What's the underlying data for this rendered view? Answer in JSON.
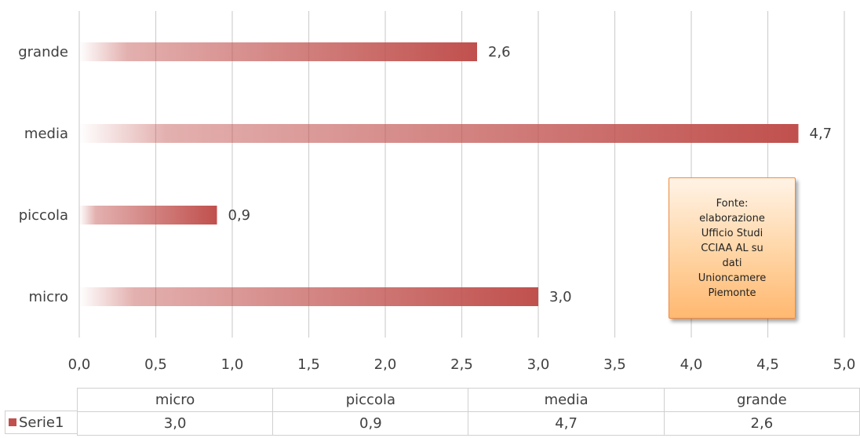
{
  "chart_data": {
    "type": "bar",
    "orientation": "horizontal",
    "categories": [
      "micro",
      "piccola",
      "media",
      "grande"
    ],
    "series": [
      {
        "name": "Serie1",
        "values": [
          3.0,
          0.9,
          4.7,
          2.6
        ],
        "labels": [
          "3,0",
          "0,9",
          "4,7",
          "2,6"
        ]
      }
    ],
    "xlim": [
      0,
      5
    ],
    "xticks": [
      "0,0",
      "0,5",
      "1,0",
      "1,5",
      "2,0",
      "2,5",
      "3,0",
      "3,5",
      "4,0",
      "4,5",
      "5,0"
    ],
    "grid": true,
    "bar_color": "#c0504d",
    "annotation": "Fonte:\nelaborazione\nUfficio Studi\nCCIAA AL su\ndati\nUnioncamere\nPiemonte",
    "data_table": true
  }
}
